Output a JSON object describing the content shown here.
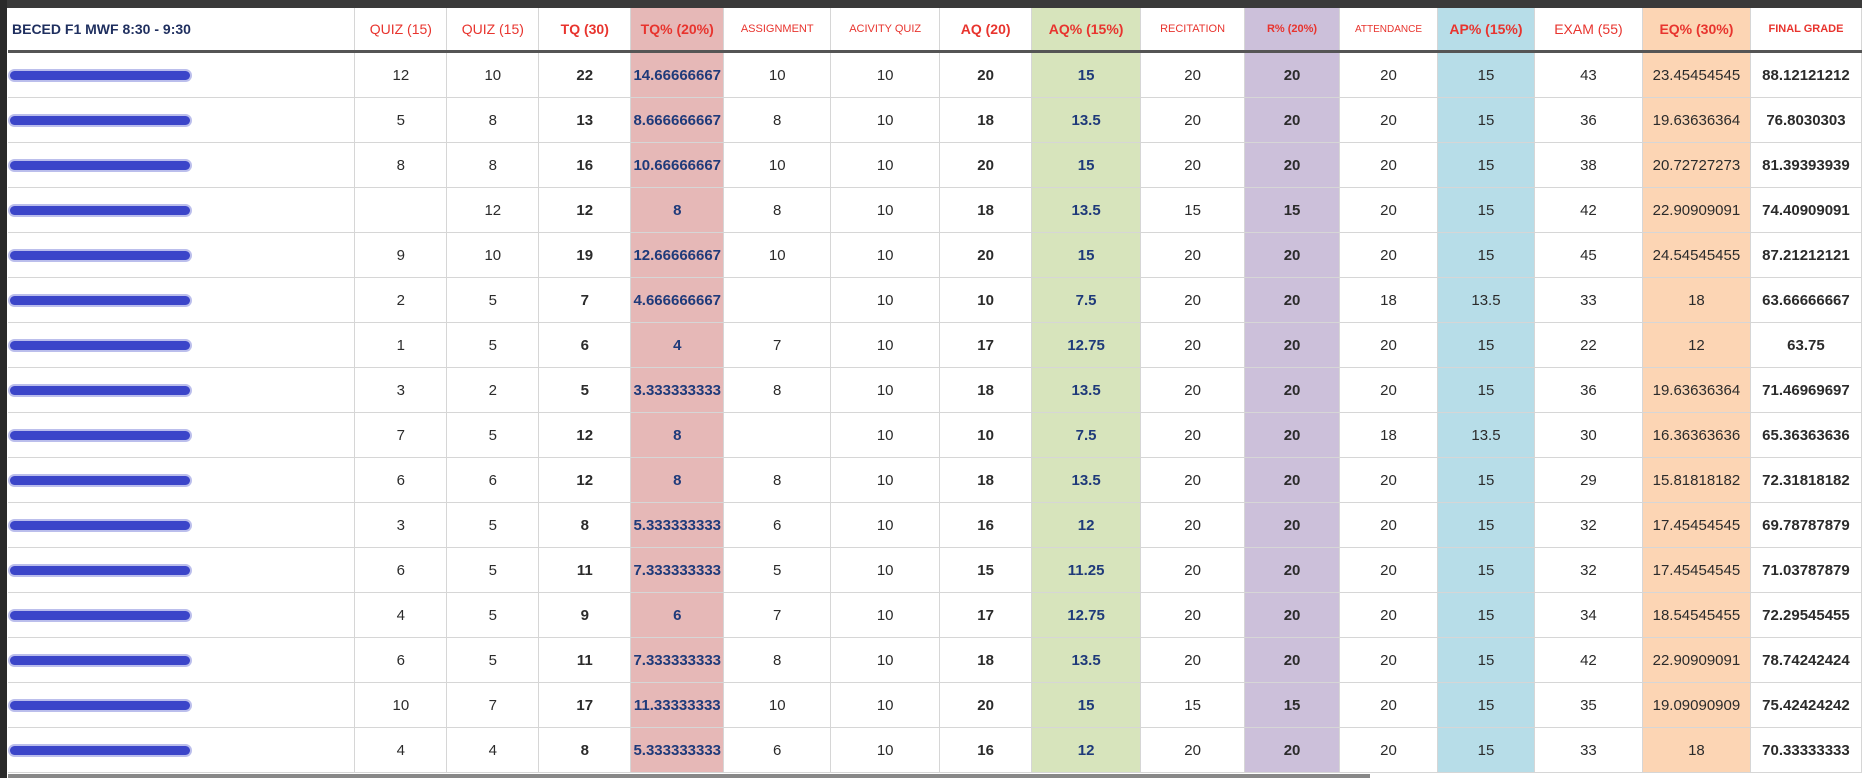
{
  "sheet": {
    "section_title": "BECED F1 MWF 8:30 - 9:30",
    "headers": {
      "quiz1": "QUIZ (15)",
      "quiz2": "QUIZ (15)",
      "tq": "TQ (30)",
      "tq_pct": "TQ% (20%)",
      "assignment": "ASSIGNMENT",
      "activity_quiz": "ACIVITY QUIZ",
      "aq": "AQ (20)",
      "aq_pct": "AQ% (15%)",
      "recitation": "RECITATION",
      "r_pct": "R% (20%)",
      "attendance": "ATTENDANCE",
      "ap_pct": "AP% (15%)",
      "exam": "EXAM (55)",
      "eq_pct": "EQ% (30%)",
      "final_grade": "FINAL GRADE"
    },
    "rows": [
      {
        "q1": "12",
        "q2": "10",
        "tq": "22",
        "tqp": "14.66666667",
        "asg": "10",
        "act": "10",
        "aq": "20",
        "aqp": "15",
        "rec": "20",
        "rp": "20",
        "att": "20",
        "app": "15",
        "exam": "43",
        "eqp": "23.45454545",
        "final": "88.12121212"
      },
      {
        "q1": "5",
        "q2": "8",
        "tq": "13",
        "tqp": "8.666666667",
        "asg": "8",
        "act": "10",
        "aq": "18",
        "aqp": "13.5",
        "rec": "20",
        "rp": "20",
        "att": "20",
        "app": "15",
        "exam": "36",
        "eqp": "19.63636364",
        "final": "76.8030303"
      },
      {
        "q1": "8",
        "q2": "8",
        "tq": "16",
        "tqp": "10.66666667",
        "asg": "10",
        "act": "10",
        "aq": "20",
        "aqp": "15",
        "rec": "20",
        "rp": "20",
        "att": "20",
        "app": "15",
        "exam": "38",
        "eqp": "20.72727273",
        "final": "81.39393939"
      },
      {
        "q1": "",
        "q2": "12",
        "tq": "12",
        "tqp": "8",
        "asg": "8",
        "act": "10",
        "aq": "18",
        "aqp": "13.5",
        "rec": "15",
        "rp": "15",
        "att": "20",
        "app": "15",
        "exam": "42",
        "eqp": "22.90909091",
        "final": "74.40909091"
      },
      {
        "q1": "9",
        "q2": "10",
        "tq": "19",
        "tqp": "12.66666667",
        "asg": "10",
        "act": "10",
        "aq": "20",
        "aqp": "15",
        "rec": "20",
        "rp": "20",
        "att": "20",
        "app": "15",
        "exam": "45",
        "eqp": "24.54545455",
        "final": "87.21212121"
      },
      {
        "q1": "2",
        "q2": "5",
        "tq": "7",
        "tqp": "4.666666667",
        "asg": "",
        "act": "10",
        "aq": "10",
        "aqp": "7.5",
        "rec": "20",
        "rp": "20",
        "att": "18",
        "app": "13.5",
        "exam": "33",
        "eqp": "18",
        "final": "63.66666667"
      },
      {
        "q1": "1",
        "q2": "5",
        "tq": "6",
        "tqp": "4",
        "asg": "7",
        "act": "10",
        "aq": "17",
        "aqp": "12.75",
        "rec": "20",
        "rp": "20",
        "att": "20",
        "app": "15",
        "exam": "22",
        "eqp": "12",
        "final": "63.75"
      },
      {
        "q1": "3",
        "q2": "2",
        "tq": "5",
        "tqp": "3.333333333",
        "asg": "8",
        "act": "10",
        "aq": "18",
        "aqp": "13.5",
        "rec": "20",
        "rp": "20",
        "att": "20",
        "app": "15",
        "exam": "36",
        "eqp": "19.63636364",
        "final": "71.46969697"
      },
      {
        "q1": "7",
        "q2": "5",
        "tq": "12",
        "tqp": "8",
        "asg": "",
        "act": "10",
        "aq": "10",
        "aqp": "7.5",
        "rec": "20",
        "rp": "20",
        "att": "18",
        "app": "13.5",
        "exam": "30",
        "eqp": "16.36363636",
        "final": "65.36363636"
      },
      {
        "q1": "6",
        "q2": "6",
        "tq": "12",
        "tqp": "8",
        "asg": "8",
        "act": "10",
        "aq": "18",
        "aqp": "13.5",
        "rec": "20",
        "rp": "20",
        "att": "20",
        "app": "15",
        "exam": "29",
        "eqp": "15.81818182",
        "final": "72.31818182"
      },
      {
        "q1": "3",
        "q2": "5",
        "tq": "8",
        "tqp": "5.333333333",
        "asg": "6",
        "act": "10",
        "aq": "16",
        "aqp": "12",
        "rec": "20",
        "rp": "20",
        "att": "20",
        "app": "15",
        "exam": "32",
        "eqp": "17.45454545",
        "final": "69.78787879"
      },
      {
        "q1": "6",
        "q2": "5",
        "tq": "11",
        "tqp": "7.333333333",
        "asg": "5",
        "act": "10",
        "aq": "15",
        "aqp": "11.25",
        "rec": "20",
        "rp": "20",
        "att": "20",
        "app": "15",
        "exam": "32",
        "eqp": "17.45454545",
        "final": "71.03787879"
      },
      {
        "q1": "4",
        "q2": "5",
        "tq": "9",
        "tqp": "6",
        "asg": "7",
        "act": "10",
        "aq": "17",
        "aqp": "12.75",
        "rec": "20",
        "rp": "20",
        "att": "20",
        "app": "15",
        "exam": "34",
        "eqp": "18.54545455",
        "final": "72.29545455"
      },
      {
        "q1": "6",
        "q2": "5",
        "tq": "11",
        "tqp": "7.333333333",
        "asg": "8",
        "act": "10",
        "aq": "18",
        "aqp": "13.5",
        "rec": "20",
        "rp": "20",
        "att": "20",
        "app": "15",
        "exam": "42",
        "eqp": "22.90909091",
        "final": "78.74242424"
      },
      {
        "q1": "10",
        "q2": "7",
        "tq": "17",
        "tqp": "11.33333333",
        "asg": "10",
        "act": "10",
        "aq": "20",
        "aqp": "15",
        "rec": "15",
        "rp": "15",
        "att": "20",
        "app": "15",
        "exam": "35",
        "eqp": "19.09090909",
        "final": "75.42424242"
      },
      {
        "q1": "4",
        "q2": "4",
        "tq": "8",
        "tqp": "5.333333333",
        "asg": "6",
        "act": "10",
        "aq": "16",
        "aqp": "12",
        "rec": "20",
        "rp": "20",
        "att": "20",
        "app": "15",
        "exam": "33",
        "eqp": "18",
        "final": "70.33333333"
      }
    ]
  }
}
